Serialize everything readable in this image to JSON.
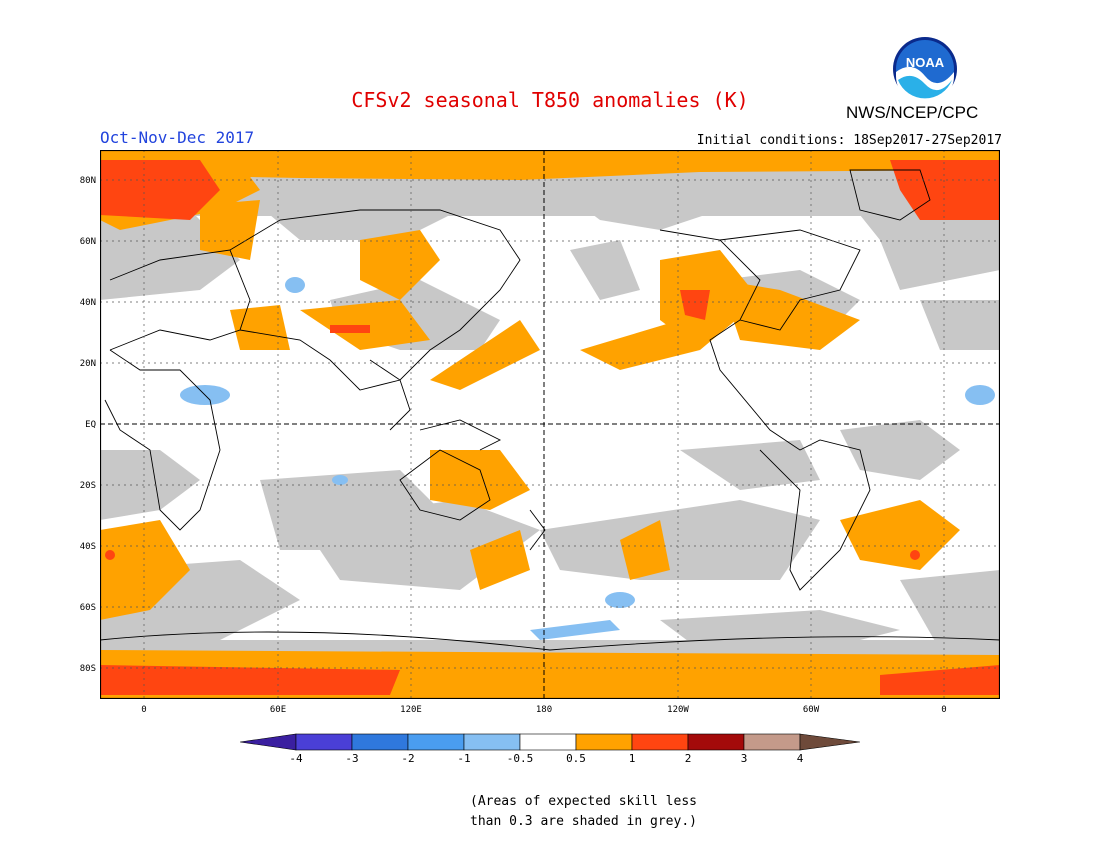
{
  "header": {
    "title": "CFSv2 seasonal T850 anomalies (K)",
    "period": "Oct-Nov-Dec 2017",
    "initial_conditions": "Initial conditions: 18Sep2017-27Sep2017",
    "agency": "NWS/NCEP/CPC",
    "logo_text": "NOAA"
  },
  "axes": {
    "y_labels": [
      "80N",
      "60N",
      "40N",
      "20N",
      "EQ",
      "20S",
      "40S",
      "60S",
      "80S"
    ],
    "x_labels": [
      "0",
      "60E",
      "120E",
      "180",
      "120W",
      "60W",
      "0"
    ]
  },
  "colorbar": {
    "labels": [
      "-4",
      "-3",
      "-2",
      "-1",
      "-0.5",
      "0.5",
      "1",
      "2",
      "3",
      "4"
    ],
    "colors": [
      "#3a1fa0",
      "#4a3fd6",
      "#2f78dd",
      "#4a9df0",
      "#86bff2",
      "#ffffff",
      "#ffa200",
      "#ff4511",
      "#a30a0a",
      "#c49a8a",
      "#6e4a3a"
    ]
  },
  "legend_note": {
    "line1": "(Areas of expected skill less",
    "line2": "than 0.3 are shaded in grey.)"
  },
  "colors": {
    "title": "#e00000",
    "period": "#2244dd",
    "grey_skill": "#c8c8c8",
    "warm_1": "#ffa200",
    "warm_2": "#ff4511",
    "cool_1": "#86bff2"
  }
}
